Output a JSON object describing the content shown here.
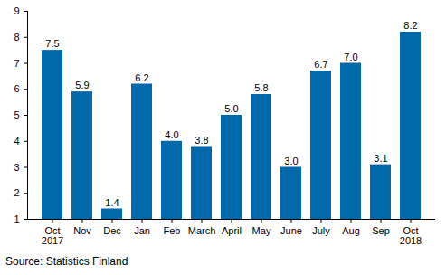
{
  "chart_data": {
    "type": "bar",
    "caption": "Source: Statistics Finland",
    "categories": [
      "Oct\n2017",
      "Nov",
      "Dec",
      "Jan",
      "Feb",
      "March",
      "April",
      "May",
      "June",
      "July",
      "Aug",
      "Sep",
      "Oct\n2018"
    ],
    "values": [
      7.5,
      5.9,
      1.4,
      6.2,
      4.0,
      3.8,
      5.0,
      5.8,
      3.0,
      6.7,
      7.0,
      3.1,
      8.2
    ],
    "value_labels": [
      "7.5",
      "5.9",
      "1.4",
      "6.2",
      "4.0",
      "3.8",
      "5.0",
      "5.8",
      "3.0",
      "6.7",
      "7.0",
      "3.1",
      "8.2"
    ],
    "color": "#0069ab",
    "ylim": [
      1,
      9
    ],
    "yticks": [
      1,
      2,
      3,
      4,
      5,
      6,
      7,
      8,
      9
    ],
    "grid": false,
    "data_labels": true
  }
}
